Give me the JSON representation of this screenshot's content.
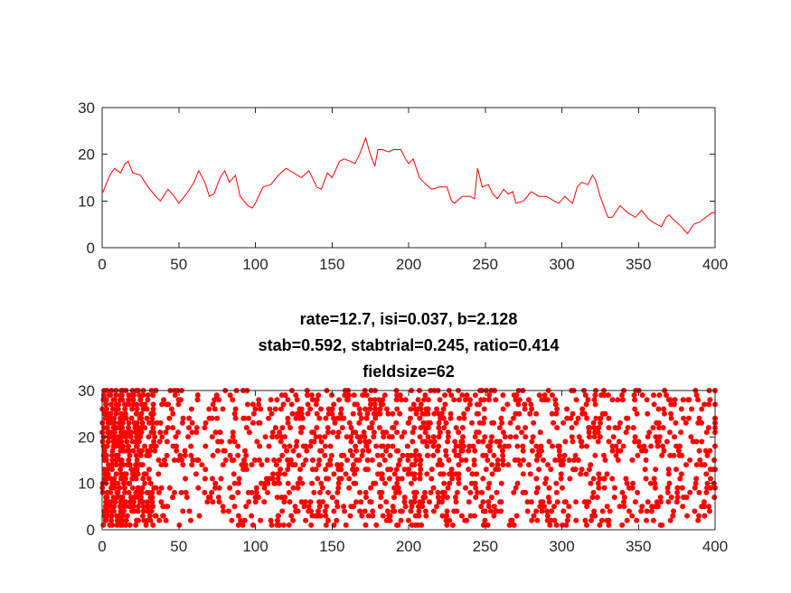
{
  "colors": {
    "series": "#ff0000",
    "axis": "#262626",
    "background": "#ffffff"
  },
  "chart_data": [
    {
      "type": "line",
      "title": "",
      "xlabel": "",
      "ylabel": "",
      "xlim": [
        0,
        400
      ],
      "ylim": [
        0,
        30
      ],
      "xticks": [
        0,
        50,
        100,
        150,
        200,
        250,
        300,
        350,
        400
      ],
      "yticks": [
        0,
        10,
        20,
        30
      ],
      "grid": false,
      "series": [
        {
          "color": "#ff0000",
          "points": [
            [
              0,
              11.5
            ],
            [
              5,
              15.5
            ],
            [
              8,
              17
            ],
            [
              12,
              16
            ],
            [
              15,
              18
            ],
            [
              17,
              18.5
            ],
            [
              20,
              16
            ],
            [
              25,
              15.5
            ],
            [
              30,
              13
            ],
            [
              35,
              11
            ],
            [
              38,
              10
            ],
            [
              43,
              12.5
            ],
            [
              47,
              11
            ],
            [
              50,
              9.5
            ],
            [
              55,
              11.5
            ],
            [
              60,
              14
            ],
            [
              63,
              16.5
            ],
            [
              67,
              14
            ],
            [
              70,
              11
            ],
            [
              73,
              11.5
            ],
            [
              77,
              15
            ],
            [
              80,
              16.5
            ],
            [
              83,
              14
            ],
            [
              87,
              15.5
            ],
            [
              90,
              11
            ],
            [
              95,
              9
            ],
            [
              98,
              8.5
            ],
            [
              100,
              9.5
            ],
            [
              105,
              13
            ],
            [
              110,
              13.5
            ],
            [
              115,
              15.5
            ],
            [
              120,
              17
            ],
            [
              125,
              16
            ],
            [
              130,
              15
            ],
            [
              135,
              16.5
            ],
            [
              140,
              13
            ],
            [
              143,
              12.5
            ],
            [
              147,
              16
            ],
            [
              150,
              15
            ],
            [
              155,
              18.5
            ],
            [
              158,
              19
            ],
            [
              162,
              18.5
            ],
            [
              165,
              18
            ],
            [
              168,
              20
            ],
            [
              172,
              23.5
            ],
            [
              175,
              20
            ],
            [
              178,
              17.5
            ],
            [
              180,
              21
            ],
            [
              183,
              21
            ],
            [
              187,
              20.5
            ],
            [
              190,
              21
            ],
            [
              195,
              21
            ],
            [
              198,
              19
            ],
            [
              200,
              18
            ],
            [
              203,
              19
            ],
            [
              207,
              15
            ],
            [
              210,
              14
            ],
            [
              215,
              12.5
            ],
            [
              220,
              13
            ],
            [
              225,
              13
            ],
            [
              228,
              10
            ],
            [
              230,
              9.5
            ],
            [
              235,
              11
            ],
            [
              240,
              11
            ],
            [
              243,
              10.5
            ],
            [
              245,
              17
            ],
            [
              248,
              13
            ],
            [
              252,
              13.5
            ],
            [
              255,
              11.5
            ],
            [
              258,
              10.5
            ],
            [
              262,
              12.5
            ],
            [
              265,
              11.5
            ],
            [
              268,
              12
            ],
            [
              270,
              9.5
            ],
            [
              275,
              10
            ],
            [
              280,
              12
            ],
            [
              285,
              11
            ],
            [
              290,
              11
            ],
            [
              295,
              10
            ],
            [
              298,
              9.5
            ],
            [
              302,
              11
            ],
            [
              305,
              10
            ],
            [
              307,
              9.5
            ],
            [
              310,
              13
            ],
            [
              313,
              14
            ],
            [
              317,
              13.5
            ],
            [
              320,
              15.5
            ],
            [
              322,
              14.5
            ],
            [
              325,
              11
            ],
            [
              330,
              6.5
            ],
            [
              333,
              6.5
            ],
            [
              338,
              9
            ],
            [
              343,
              7.5
            ],
            [
              348,
              6.5
            ],
            [
              352,
              8
            ],
            [
              357,
              6
            ],
            [
              362,
              5
            ],
            [
              365,
              4.5
            ],
            [
              368,
              6.5
            ],
            [
              370,
              7
            ],
            [
              373,
              6
            ],
            [
              378,
              4.5
            ],
            [
              382,
              3
            ],
            [
              386,
              5
            ],
            [
              390,
              5.5
            ],
            [
              394,
              6.5
            ],
            [
              398,
              7.5
            ],
            [
              400,
              7.5
            ]
          ]
        }
      ]
    },
    {
      "type": "scatter",
      "title_lines": [
        "rate=12.7, isi=0.037, b=2.128",
        "stab=0.592, stabtrial=0.245, ratio=0.414",
        "fieldsize=62"
      ],
      "xlabel": "",
      "ylabel": "",
      "xlim": [
        0,
        400
      ],
      "ylim": [
        0,
        30
      ],
      "xticks": [
        0,
        50,
        100,
        150,
        200,
        250,
        300,
        350,
        400
      ],
      "yticks": [
        0,
        10,
        20,
        30
      ],
      "grid": false,
      "marker": "filled-circle",
      "color": "#ff0000",
      "trials": 30,
      "spike_density_profile": [
        [
          0,
          0.95
        ],
        [
          10,
          0.85
        ],
        [
          20,
          0.7
        ],
        [
          35,
          0.35
        ],
        [
          50,
          0.2
        ],
        [
          80,
          0.22
        ],
        [
          100,
          0.28
        ],
        [
          150,
          0.38
        ],
        [
          200,
          0.42
        ],
        [
          250,
          0.32
        ],
        [
          300,
          0.28
        ],
        [
          350,
          0.25
        ],
        [
          400,
          0.3
        ]
      ]
    }
  ]
}
